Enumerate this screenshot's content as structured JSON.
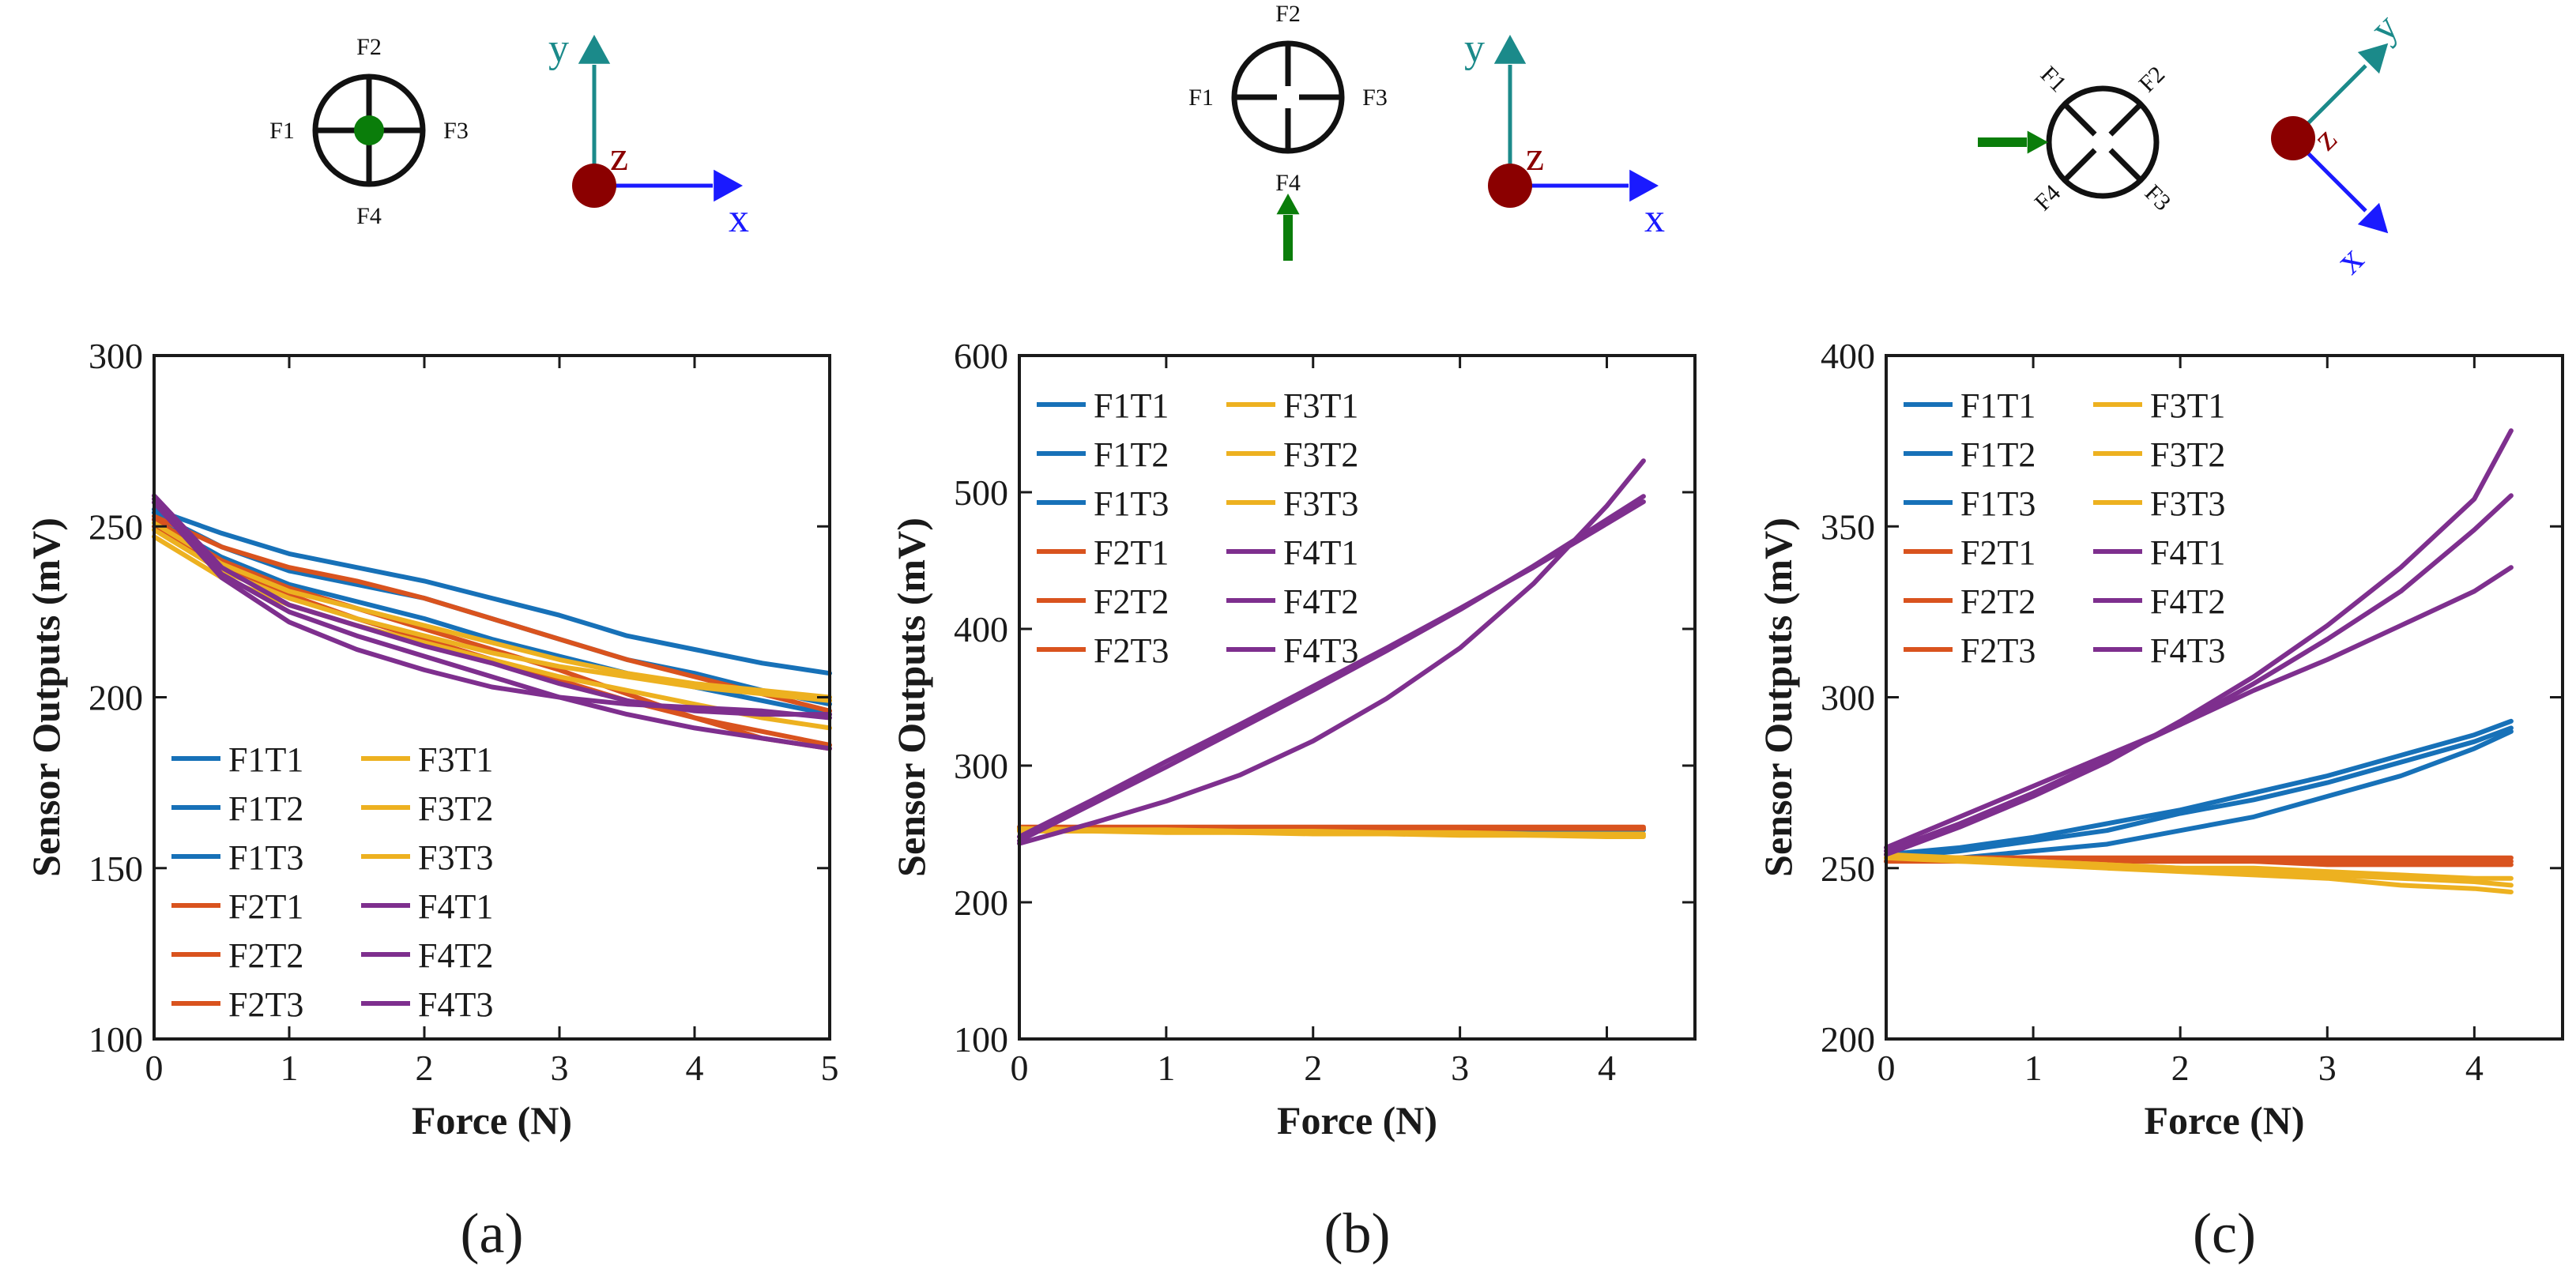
{
  "colors": {
    "F1": "#1771b8",
    "F2": "#d9531e",
    "F3": "#edb120",
    "F4": "#7e2f8e",
    "axis_y_arrow": "#1b8a8a",
    "axis_x_arrow": "#1a1aff",
    "axis_z_dot": "#8b0000",
    "axis_x_label": "#1a1aff",
    "axis_y_label": "#1b8a8a",
    "axis_z_label": "#8b0000",
    "force_indicator": "#0a7d0a",
    "frame": "#1a1a1a"
  },
  "diagrams": [
    {
      "labels": {
        "f1": "F1",
        "f2": "F2",
        "f3": "F3",
        "f4": "F4"
      },
      "force": "center-dot",
      "axes": {
        "x": "x",
        "y": "y",
        "z": "z"
      },
      "rotation_deg": 0
    },
    {
      "labels": {
        "f1": "F1",
        "f2": "F2",
        "f3": "F3",
        "f4": "F4"
      },
      "force": "arrow-up-from-bottom",
      "axes": {
        "x": "x",
        "y": "y",
        "z": "z"
      },
      "rotation_deg": 0
    },
    {
      "labels": {
        "f1": "F1",
        "f2": "F2",
        "f3": "F3",
        "f4": "F4"
      },
      "force": "arrow-right-from-left",
      "axes": {
        "x": "x",
        "y": "y",
        "z": "z"
      },
      "rotation_deg": 45
    }
  ],
  "chart_data": [
    {
      "type": "line",
      "caption": "(a)",
      "xlabel": "Force (N)",
      "ylabel": "Sensor Outputs (mV)",
      "xlim": [
        0,
        5
      ],
      "ylim": [
        100,
        300
      ],
      "xticks": [
        "0",
        "1",
        "2",
        "3",
        "4",
        "5"
      ],
      "yticks": [
        "100",
        "150",
        "200",
        "250",
        "300"
      ],
      "grid": false,
      "legend_position": "bottom-left",
      "legend_columns": 2,
      "x": [
        0,
        0.5,
        1,
        1.5,
        2,
        2.5,
        3,
        3.5,
        4,
        4.5,
        5
      ],
      "series": [
        {
          "name": "F1T1",
          "group": "F1",
          "values": [
            255,
            248,
            242,
            238,
            234,
            229,
            224,
            218,
            214,
            210,
            207
          ]
        },
        {
          "name": "F1T2",
          "group": "F1",
          "values": [
            254,
            244,
            237,
            233,
            229,
            223,
            217,
            211,
            207,
            202,
            198
          ]
        },
        {
          "name": "F1T3",
          "group": "F1",
          "values": [
            252,
            241,
            233,
            228,
            223,
            217,
            212,
            207,
            203,
            199,
            195
          ]
        },
        {
          "name": "F2T1",
          "group": "F2",
          "values": [
            253,
            244,
            238,
            234,
            229,
            223,
            217,
            211,
            206,
            201,
            196
          ]
        },
        {
          "name": "F2T2",
          "group": "F2",
          "values": [
            252,
            240,
            232,
            226,
            220,
            214,
            208,
            201,
            194,
            188,
            185
          ]
        },
        {
          "name": "F2T3",
          "group": "F2",
          "values": [
            250,
            238,
            230,
            223,
            217,
            211,
            205,
            199,
            194,
            190,
            186
          ]
        },
        {
          "name": "F3T1",
          "group": "F3",
          "values": [
            251,
            239,
            231,
            226,
            221,
            216,
            211,
            207,
            204,
            202,
            200
          ]
        },
        {
          "name": "F3T2",
          "group": "F3",
          "values": [
            249,
            237,
            229,
            223,
            218,
            213,
            209,
            206,
            203,
            201,
            199
          ]
        },
        {
          "name": "F3T3",
          "group": "F3",
          "values": [
            247,
            235,
            227,
            221,
            216,
            211,
            206,
            202,
            198,
            194,
            191
          ]
        },
        {
          "name": "F4T1",
          "group": "F4",
          "values": [
            258,
            236,
            225,
            218,
            212,
            206,
            200,
            195,
            191,
            188,
            185
          ]
        },
        {
          "name": "F4T2",
          "group": "F4",
          "values": [
            259,
            238,
            227,
            221,
            215,
            210,
            204,
            199,
            196,
            195,
            195
          ]
        },
        {
          "name": "F4T3",
          "group": "F4",
          "values": [
            257,
            235,
            222,
            214,
            208,
            203,
            200,
            198,
            197,
            196,
            194
          ]
        }
      ]
    },
    {
      "type": "line",
      "caption": "(b)",
      "xlabel": "Force (N)",
      "ylabel": "Sensor Outputs (mV)",
      "xlim": [
        0,
        4.6
      ],
      "ylim": [
        100,
        600
      ],
      "xticks": [
        "0",
        "1",
        "2",
        "3",
        "4"
      ],
      "yticks": [
        "100",
        "200",
        "300",
        "400",
        "500",
        "600"
      ],
      "grid": false,
      "legend_position": "top-left",
      "legend_columns": 2,
      "x": [
        0,
        0.5,
        1,
        1.5,
        2,
        2.5,
        3,
        3.5,
        4,
        4.25
      ],
      "series": [
        {
          "name": "F1T1",
          "group": "F1",
          "values": [
            254,
            254,
            254,
            254,
            254,
            254,
            254,
            254,
            254,
            254
          ]
        },
        {
          "name": "F1T2",
          "group": "F1",
          "values": [
            254,
            254,
            254,
            253,
            253,
            253,
            253,
            253,
            253,
            253
          ]
        },
        {
          "name": "F1T3",
          "group": "F1",
          "values": [
            253,
            253,
            253,
            253,
            253,
            253,
            253,
            253,
            253,
            253
          ]
        },
        {
          "name": "F2T1",
          "group": "F2",
          "values": [
            255,
            255,
            255,
            255,
            255,
            255,
            255,
            255,
            255,
            255
          ]
        },
        {
          "name": "F2T2",
          "group": "F2",
          "values": [
            254,
            254,
            254,
            254,
            254,
            254,
            254,
            254,
            254,
            254
          ]
        },
        {
          "name": "F2T3",
          "group": "F2",
          "values": [
            254,
            254,
            254,
            254,
            254,
            254,
            254,
            254,
            254,
            254
          ]
        },
        {
          "name": "F3T1",
          "group": "F3",
          "values": [
            252,
            252,
            251,
            251,
            250,
            250,
            249,
            249,
            248,
            248
          ]
        },
        {
          "name": "F3T2",
          "group": "F3",
          "values": [
            253,
            252,
            252,
            251,
            251,
            250,
            250,
            249,
            249,
            249
          ]
        },
        {
          "name": "F3T3",
          "group": "F3",
          "values": [
            254,
            253,
            253,
            252,
            252,
            251,
            251,
            250,
            250,
            250
          ]
        },
        {
          "name": "F4T1",
          "group": "F4",
          "values": [
            248,
            275,
            303,
            330,
            358,
            386,
            415,
            445,
            477,
            493
          ]
        },
        {
          "name": "F4T2",
          "group": "F4",
          "values": [
            245,
            272,
            299,
            327,
            355,
            384,
            414,
            446,
            480,
            497
          ]
        },
        {
          "name": "F4T3",
          "group": "F4",
          "values": [
            243,
            258,
            274,
            293,
            318,
            349,
            386,
            433,
            490,
            523
          ]
        }
      ]
    },
    {
      "type": "line",
      "caption": "(c)",
      "xlabel": "Force (N)",
      "ylabel": "Sensor Outputs (mV)",
      "xlim": [
        0,
        4.6
      ],
      "ylim": [
        200,
        400
      ],
      "xticks": [
        "0",
        "1",
        "2",
        "3",
        "4"
      ],
      "yticks": [
        "200",
        "250",
        "300",
        "350",
        "400"
      ],
      "grid": false,
      "legend_position": "top-left",
      "legend_columns": 2,
      "x": [
        0,
        0.5,
        1,
        1.5,
        2,
        2.5,
        3,
        3.5,
        4,
        4.25
      ],
      "series": [
        {
          "name": "F1T1",
          "group": "F1",
          "values": [
            254,
            256,
            259,
            263,
            267,
            272,
            277,
            283,
            289,
            293
          ]
        },
        {
          "name": "F1T2",
          "group": "F1",
          "values": [
            253,
            255,
            258,
            261,
            266,
            270,
            275,
            281,
            287,
            291
          ]
        },
        {
          "name": "F1T3",
          "group": "F1",
          "values": [
            252,
            253,
            255,
            257,
            261,
            265,
            271,
            277,
            285,
            290
          ]
        },
        {
          "name": "F2T1",
          "group": "F2",
          "values": [
            253,
            253,
            253,
            253,
            253,
            253,
            253,
            253,
            253,
            253
          ]
        },
        {
          "name": "F2T2",
          "group": "F2",
          "values": [
            252,
            252,
            252,
            252,
            252,
            252,
            252,
            252,
            252,
            252
          ]
        },
        {
          "name": "F2T3",
          "group": "F2",
          "values": [
            253,
            253,
            253,
            252,
            252,
            252,
            251,
            251,
            251,
            251
          ]
        },
        {
          "name": "F3T1",
          "group": "F3",
          "values": [
            254,
            253,
            252,
            251,
            250,
            249,
            248,
            247,
            246,
            245
          ]
        },
        {
          "name": "F3T2",
          "group": "F3",
          "values": [
            253,
            253,
            252,
            251,
            250,
            250,
            249,
            248,
            247,
            247
          ]
        },
        {
          "name": "F3T3",
          "group": "F3",
          "values": [
            253,
            252,
            251,
            250,
            249,
            248,
            247,
            245,
            244,
            243
          ]
        },
        {
          "name": "F4T1",
          "group": "F4",
          "values": [
            254,
            262,
            271,
            281,
            293,
            306,
            321,
            338,
            358,
            378
          ]
        },
        {
          "name": "F4T2",
          "group": "F4",
          "values": [
            255,
            263,
            272,
            282,
            292,
            304,
            317,
            331,
            349,
            359
          ]
        },
        {
          "name": "F4T3",
          "group": "F4",
          "values": [
            256,
            265,
            274,
            283,
            292,
            302,
            311,
            321,
            331,
            338
          ]
        }
      ]
    }
  ]
}
